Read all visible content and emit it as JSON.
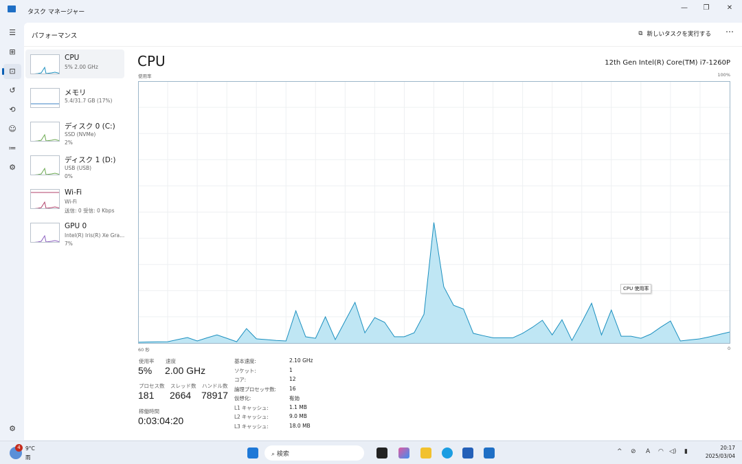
{
  "window": {
    "title": "タスク マネージャー",
    "minimize": "—",
    "restore": "❐",
    "close": "✕"
  },
  "rail": [
    {
      "name": "menu-icon",
      "glyph": "☰"
    },
    {
      "name": "processes-icon",
      "glyph": "⊞"
    },
    {
      "name": "performance-icon",
      "glyph": "⊡",
      "active": true
    },
    {
      "name": "app-history-icon",
      "glyph": "↺"
    },
    {
      "name": "startup-apps-icon",
      "glyph": "⟲"
    },
    {
      "name": "users-icon",
      "glyph": "☺"
    },
    {
      "name": "details-icon",
      "glyph": "≔"
    },
    {
      "name": "services-icon",
      "glyph": "⚙"
    }
  ],
  "settings_glyph": "⚙",
  "header": {
    "title": "パフォーマンス",
    "new_task": "新しいタスクを実行する",
    "new_task_glyph": "⧉",
    "more": "⋯"
  },
  "devices": [
    {
      "name": "CPU",
      "sub": [
        "5% 2.00 GHz"
      ],
      "color": "#1a8fbf"
    },
    {
      "name": "メモリ",
      "sub": [
        "5.4/31.7 GB (17%)"
      ],
      "color": "#3a7fc4"
    },
    {
      "name": "ディスク 0 (C:)",
      "sub": [
        "SSD (NVMe)",
        "2%"
      ],
      "color": "#6aa84f"
    },
    {
      "name": "ディスク 1 (D:)",
      "sub": [
        "USB (USB)",
        "0%"
      ],
      "color": "#6aa84f"
    },
    {
      "name": "Wi-Fi",
      "sub": [
        "Wi-Fi",
        "送信: 0  受信: 0 Kbps"
      ],
      "color": "#b0406a"
    },
    {
      "name": "GPU 0",
      "sub": [
        "Intel(R) Iris(R) Xe Gra...",
        "7%"
      ],
      "color": "#8b5fbf"
    }
  ],
  "cpu": {
    "title": "CPU",
    "model": "12th Gen Intel(R) Core(TM) i7-1260P",
    "tooltip": "CPU 使用率"
  },
  "chart_data": {
    "type": "area",
    "ylabel": "使用率",
    "ymax_label": "100%",
    "xlabel_left": "60 秒",
    "xlabel_right": "0",
    "ylim": [
      0,
      100
    ],
    "xlim": [
      60,
      0
    ],
    "grid": true,
    "color": "#1a8fbf",
    "fill": "#bfe6f4",
    "values": [
      0.3,
      0.4,
      0.45,
      0.5,
      1.3,
      2.1,
      0.8,
      2,
      3.1,
      1.8,
      0.5,
      5.5,
      1.6,
      1.3,
      1,
      0.8,
      12.3,
      2.4,
      1.8,
      10,
      1.3,
      8.4,
      15.5,
      3.9,
      9.7,
      7.9,
      2.4,
      2.4,
      3.9,
      11,
      46,
      21.5,
      14.4,
      13,
      3.7,
      2.8,
      2,
      2,
      2,
      3.7,
      6,
      8.7,
      3.1,
      8.9,
      1,
      7.9,
      15.2,
      3.1,
      12.6,
      2.6,
      2.6,
      1.8,
      3.4,
      6,
      8.4,
      0.8,
      1.2,
      1.6,
      2.4,
      3.3,
      4.2
    ]
  },
  "stats": {
    "usage_label": "使用率",
    "usage": "5%",
    "speed_label": "速度",
    "speed": "2.00 GHz",
    "proc_label": "プロセス数",
    "proc": "181",
    "thread_label": "スレッド数",
    "thread": "2664",
    "handle_label": "ハンドル数",
    "handle": "78917",
    "uptime_label": "稼働時間",
    "uptime": "0:03:04:20"
  },
  "specs": [
    [
      "基本速度:",
      "2.10 GHz"
    ],
    [
      "ソケット:",
      "1"
    ],
    [
      "コア:",
      "12"
    ],
    [
      "論理プロセッサ数:",
      "16"
    ],
    [
      "仮想化:",
      "有効"
    ],
    [
      "L1 キャッシュ:",
      "1.1 MB"
    ],
    [
      "L2 キャッシュ:",
      "9.0 MB"
    ],
    [
      "L3 キャッシュ:",
      "18.0 MB"
    ]
  ],
  "taskbar": {
    "weather_temp": "9°C",
    "weather_desc": "雨",
    "weather_badge": "4",
    "search": "検索",
    "search_glyph": "⌕",
    "time": "20:17",
    "date": "2025/03/04",
    "tray": [
      "^",
      "⊘",
      "A",
      "◠",
      "◁)",
      "▮"
    ]
  }
}
